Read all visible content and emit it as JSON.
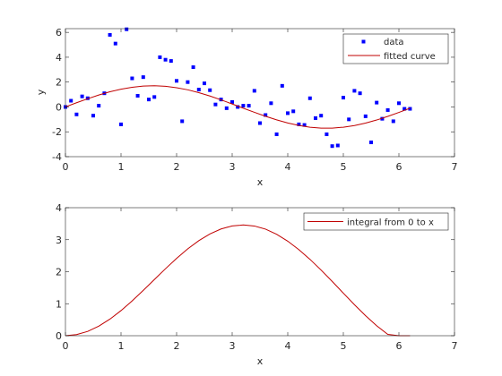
{
  "colors": {
    "data_marker": "#0000ff",
    "curve": "#c00000",
    "axis": "#262626",
    "background": "#ffffff"
  },
  "chart_data": [
    {
      "type": "scatter",
      "xlabel": "x",
      "ylabel": "y",
      "xlim": [
        0,
        7
      ],
      "ylim": [
        -4,
        6.3
      ],
      "x_ticks": [
        "0",
        "1",
        "2",
        "3",
        "4",
        "5",
        "6",
        "7"
      ],
      "y_ticks": [
        "-4",
        "-2",
        "0",
        "2",
        "4",
        "6"
      ],
      "grid": false,
      "legend_position": "top-right",
      "series": [
        {
          "name": "data",
          "type": "scatter",
          "x": [
            0.0,
            0.1,
            0.2,
            0.3,
            0.4,
            0.5,
            0.6,
            0.7,
            0.8,
            0.9,
            1.0,
            1.1,
            1.2,
            1.3,
            1.4,
            1.5,
            1.6,
            1.7,
            1.8,
            1.9,
            2.0,
            2.1,
            2.2,
            2.3,
            2.4,
            2.5,
            2.6,
            2.7,
            2.8,
            2.9,
            3.0,
            3.1,
            3.2,
            3.3,
            3.4,
            3.5,
            3.6,
            3.7,
            3.8,
            3.9,
            4.0,
            4.1,
            4.2,
            4.3,
            4.4,
            4.5,
            4.6,
            4.7,
            4.8,
            4.9,
            5.0,
            5.1,
            5.2,
            5.3,
            5.4,
            5.5,
            5.6,
            5.7,
            5.8,
            5.9,
            6.0,
            6.1,
            6.2
          ],
          "y": [
            0.0,
            0.5,
            -0.6,
            0.85,
            0.7,
            -0.7,
            0.1,
            1.1,
            5.8,
            5.1,
            -1.4,
            6.25,
            2.3,
            0.9,
            2.4,
            0.6,
            0.8,
            4.0,
            3.8,
            3.7,
            2.1,
            -1.15,
            2.0,
            3.2,
            1.4,
            1.9,
            1.35,
            0.2,
            0.6,
            -0.1,
            0.4,
            0.0,
            0.1,
            0.1,
            1.3,
            -1.3,
            -0.65,
            0.3,
            -2.2,
            1.7,
            -0.5,
            -0.35,
            -1.4,
            -1.45,
            0.7,
            -0.9,
            -0.7,
            -2.2,
            -3.15,
            -3.1,
            0.75,
            -1.0,
            1.3,
            1.1,
            -0.75,
            -2.85,
            0.35,
            -0.95,
            -0.25,
            -1.15,
            0.3,
            -0.15,
            -0.15
          ]
        },
        {
          "name": "fitted curve",
          "type": "line",
          "x": [
            0.0,
            0.2,
            0.4,
            0.6,
            0.8,
            1.0,
            1.2,
            1.4,
            1.6,
            1.8,
            2.0,
            2.2,
            2.4,
            2.6,
            2.8,
            3.0,
            3.2,
            3.4,
            3.6,
            3.8,
            4.0,
            4.2,
            4.4,
            4.6,
            4.8,
            5.0,
            5.2,
            5.4,
            5.6,
            5.8,
            6.0,
            6.2
          ],
          "y": [
            0.0,
            0.34,
            0.66,
            0.96,
            1.22,
            1.43,
            1.58,
            1.68,
            1.71,
            1.66,
            1.55,
            1.38,
            1.15,
            0.88,
            0.57,
            0.24,
            -0.1,
            -0.43,
            -0.75,
            -1.04,
            -1.29,
            -1.49,
            -1.63,
            -1.7,
            -1.7,
            -1.63,
            -1.5,
            -1.3,
            -1.05,
            -0.76,
            -0.44,
            -0.1
          ]
        }
      ]
    },
    {
      "type": "line",
      "xlabel": "x",
      "ylabel": "",
      "xlim": [
        0,
        7
      ],
      "ylim": [
        0,
        4
      ],
      "x_ticks": [
        "0",
        "1",
        "2",
        "3",
        "4",
        "5",
        "6",
        "7"
      ],
      "y_ticks": [
        "0",
        "1",
        "2",
        "3",
        "4"
      ],
      "grid": false,
      "legend_position": "top-right",
      "series": [
        {
          "name": "integral from 0 to x",
          "type": "line",
          "x": [
            0.0,
            0.2,
            0.4,
            0.6,
            0.8,
            1.0,
            1.2,
            1.4,
            1.6,
            1.8,
            2.0,
            2.2,
            2.4,
            2.6,
            2.8,
            3.0,
            3.1416,
            3.2,
            3.4,
            3.6,
            3.8,
            4.0,
            4.2,
            4.4,
            4.6,
            4.8,
            5.0,
            5.2,
            5.4,
            5.6,
            5.8,
            6.0,
            6.2
          ],
          "y": [
            0.0,
            0.034,
            0.135,
            0.299,
            0.518,
            0.785,
            1.088,
            1.416,
            1.755,
            2.093,
            2.416,
            2.713,
            2.971,
            3.181,
            3.336,
            3.431,
            3.45,
            3.461,
            3.428,
            3.33,
            3.17,
            2.954,
            2.69,
            2.386,
            2.051,
            1.695,
            1.33,
            0.969,
            0.625,
            0.312,
            0.041,
            0.0,
            0.0
          ]
        }
      ]
    }
  ]
}
